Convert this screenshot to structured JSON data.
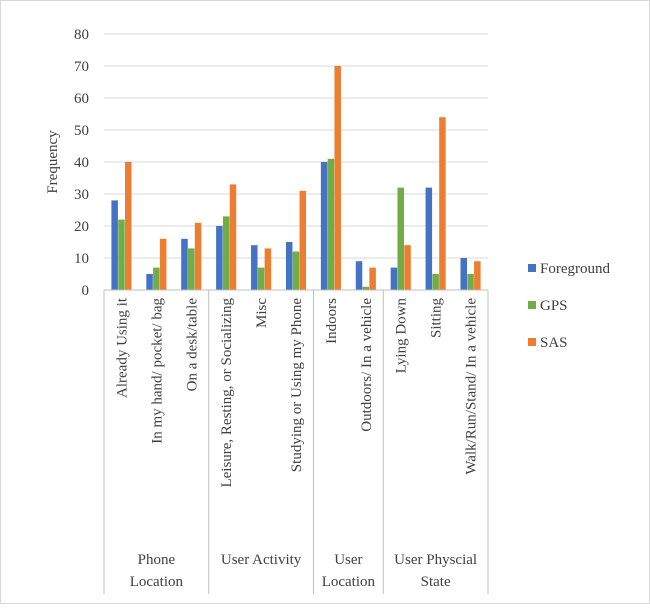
{
  "chart_data": {
    "type": "bar",
    "ylabel": "Frequency",
    "xlabel": "",
    "ylim": [
      0,
      80
    ],
    "yticks": [
      0,
      10,
      20,
      30,
      40,
      50,
      60,
      70,
      80
    ],
    "grid": true,
    "legend_position": "right",
    "groups": [
      {
        "label_lines": [
          "Phone",
          "Location"
        ],
        "categories": [
          "Already Using it",
          "In my hand/ pocket/ bag",
          "On a desk/table"
        ]
      },
      {
        "label_lines": [
          "User Activity"
        ],
        "categories": [
          "Leisure, Resting, or Socializing",
          "Misc",
          "Studying or Using my Phone"
        ]
      },
      {
        "label_lines": [
          "User",
          "Location"
        ],
        "categories": [
          "Indoors",
          "Outdoors/ In a vehicle"
        ]
      },
      {
        "label_lines": [
          "User Physcial",
          "State"
        ],
        "categories": [
          "Lying Down",
          "Sitting",
          "Walk/Run/Stand/ In a vehicle"
        ]
      }
    ],
    "categories": [
      "Already Using it",
      "In my hand/ pocket/ bag",
      "On a desk/table",
      "Leisure, Resting, or Socializing",
      "Misc",
      "Studying or Using my Phone",
      "Indoors",
      "Outdoors/ In a vehicle",
      "Lying Down",
      "Sitting",
      "Walk/Run/Stand/ In a vehicle"
    ],
    "series": [
      {
        "name": "Foreground",
        "color": "#4472C4",
        "values": [
          28,
          5,
          16,
          20,
          14,
          15,
          40,
          9,
          7,
          32,
          10
        ]
      },
      {
        "name": "GPS",
        "color": "#70AD47",
        "values": [
          22,
          7,
          13,
          23,
          7,
          12,
          41,
          1,
          32,
          5,
          5
        ]
      },
      {
        "name": "SAS",
        "color": "#ED7D31",
        "values": [
          40,
          16,
          21,
          33,
          13,
          31,
          70,
          7,
          14,
          54,
          9
        ]
      }
    ]
  }
}
